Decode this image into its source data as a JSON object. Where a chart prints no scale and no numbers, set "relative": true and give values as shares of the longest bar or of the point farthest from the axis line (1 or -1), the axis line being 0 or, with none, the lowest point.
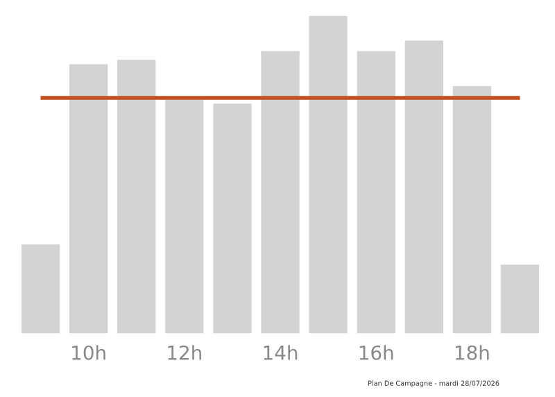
{
  "chart_data": {
    "type": "bar",
    "relative": true,
    "categories": [
      null,
      "10h",
      null,
      "12h",
      null,
      "14h",
      null,
      "16h",
      null,
      "18h",
      null
    ],
    "values": [
      0.28,
      0.848,
      0.862,
      0.742,
      0.724,
      0.889,
      1,
      0.889,
      0.922,
      0.779,
      0.217
    ],
    "color": "#d3d3d3",
    "ref_lines": [
      {
        "axis": "y",
        "value": 0.742,
        "color": "#c0501f"
      }
    ],
    "annotations": [
      "Plan De Campagne - mardi 28/07/2026"
    ],
    "grid": false,
    "legend": false
  }
}
